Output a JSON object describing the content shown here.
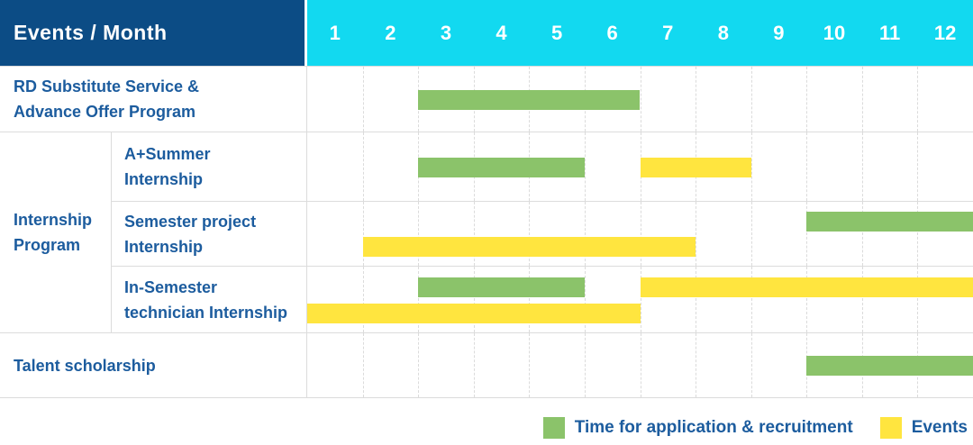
{
  "header": {
    "title": "Events / Month",
    "months": [
      "1",
      "2",
      "3",
      "4",
      "5",
      "6",
      "7",
      "8",
      "9",
      "10",
      "11",
      "12"
    ]
  },
  "colors": {
    "recruitment": "#8BC36A",
    "event": "#FFE53F",
    "header_bg": "#0C4C85",
    "months_bg": "#12D9F0",
    "label_text": "#1C5C9E",
    "grid": "#DCDCDC"
  },
  "chart_data": {
    "type": "gantt",
    "title": "Events / Month",
    "x_axis": {
      "label": "Month",
      "ticks": [
        "1",
        "2",
        "3",
        "4",
        "5",
        "6",
        "7",
        "8",
        "9",
        "10",
        "11",
        "12"
      ],
      "range": [
        1,
        12
      ]
    },
    "months": [
      "1",
      "2",
      "3",
      "4",
      "5",
      "6",
      "7",
      "8",
      "9",
      "10",
      "11",
      "12"
    ],
    "sections": [
      {
        "kind": "row",
        "label": "RD Substitute Service & Advance Offer Program",
        "label_lines": [
          "RD Substitute Service &",
          "Advance Offer Program"
        ],
        "bars": [
          {
            "kind": "recruitment",
            "series": "Time for application & recruitment",
            "start_month": 3,
            "end_month": 6,
            "lane": "center"
          }
        ]
      },
      {
        "kind": "group",
        "label": "Internship Program",
        "label_lines": [
          "Internship",
          "Program"
        ],
        "rows": [
          {
            "label": "A+Summer Internship",
            "label_lines": [
              "A+Summer",
              "Internship"
            ],
            "bars": [
              {
                "kind": "recruitment",
                "series": "Time for application & recruitment",
                "start_month": 3,
                "end_month": 5,
                "lane": "center"
              },
              {
                "kind": "event",
                "series": "Events",
                "start_month": 7,
                "end_month": 8,
                "lane": "center"
              }
            ]
          },
          {
            "label": "Semester project Internship",
            "label_lines": [
              "Semester project",
              "Internship"
            ],
            "bars": [
              {
                "kind": "recruitment",
                "series": "Time for application & recruitment",
                "start_month": 10,
                "end_month": 12,
                "lane": "top"
              },
              {
                "kind": "event",
                "series": "Events",
                "start_month": 2,
                "end_month": 7,
                "lane": "bottom"
              }
            ]
          },
          {
            "label": "In-Semester technician Internship",
            "label_lines": [
              "In-Semester",
              "technician Internship"
            ],
            "bars": [
              {
                "kind": "recruitment",
                "series": "Time for application & recruitment",
                "start_month": 3,
                "end_month": 5,
                "lane": "top"
              },
              {
                "kind": "event",
                "series": "Events",
                "start_month": 7,
                "end_month": 12,
                "lane": "top"
              },
              {
                "kind": "event",
                "series": "Events",
                "start_month": 1,
                "end_month": 6,
                "lane": "bottom"
              }
            ]
          }
        ]
      },
      {
        "kind": "row",
        "label": "Talent scholarship",
        "label_lines": [
          "Talent scholarship"
        ],
        "bars": [
          {
            "kind": "recruitment",
            "series": "Time for application & recruitment",
            "start_month": 10,
            "end_month": 12,
            "lane": "center"
          }
        ]
      }
    ]
  },
  "legend": {
    "items": [
      {
        "kind": "recruitment",
        "label": "Time for application & recruitment"
      },
      {
        "kind": "event",
        "label": "Events"
      }
    ]
  }
}
